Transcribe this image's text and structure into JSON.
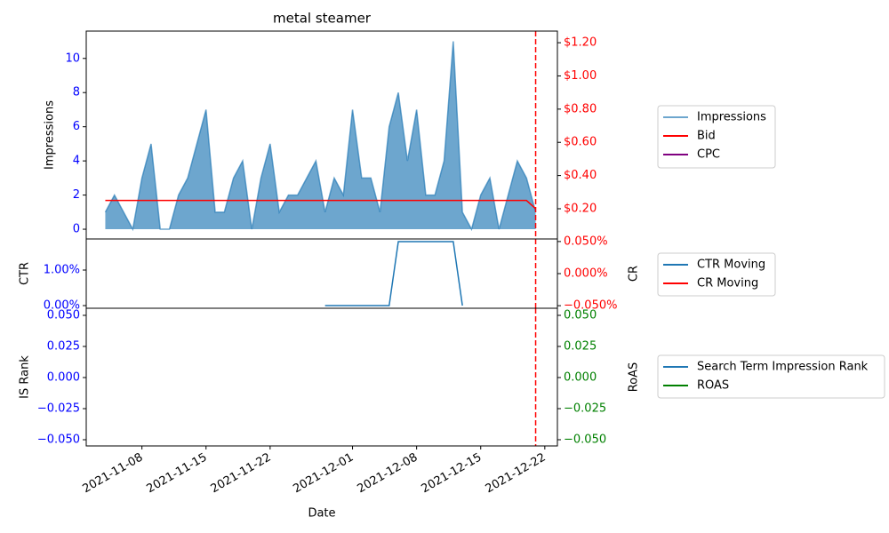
{
  "chart_data": {
    "type": "line",
    "title": "metal steamer",
    "x_label": "Date",
    "x": [
      "2021-11-04",
      "2021-11-05",
      "2021-11-06",
      "2021-11-07",
      "2021-11-08",
      "2021-11-09",
      "2021-11-10",
      "2021-11-11",
      "2021-11-12",
      "2021-11-13",
      "2021-11-14",
      "2021-11-15",
      "2021-11-16",
      "2021-11-17",
      "2021-11-18",
      "2021-11-19",
      "2021-11-20",
      "2021-11-21",
      "2021-11-22",
      "2021-11-23",
      "2021-11-24",
      "2021-11-25",
      "2021-11-26",
      "2021-11-27",
      "2021-11-28",
      "2021-11-29",
      "2021-11-30",
      "2021-12-01",
      "2021-12-02",
      "2021-12-03",
      "2021-12-04",
      "2021-12-05",
      "2021-12-06",
      "2021-12-07",
      "2021-12-08",
      "2021-12-09",
      "2021-12-10",
      "2021-12-11",
      "2021-12-12",
      "2021-12-13",
      "2021-12-14",
      "2021-12-15",
      "2021-12-16",
      "2021-12-17",
      "2021-12-18",
      "2021-12-19",
      "2021-12-20",
      "2021-12-21"
    ],
    "xlim": [
      "2021-11-01T22:00",
      "2021-12-23T09:00"
    ],
    "xticks": [
      "2021-11-08",
      "2021-11-15",
      "2021-11-22",
      "2021-12-01",
      "2021-12-08",
      "2021-12-15",
      "2021-12-22"
    ],
    "vline": "2021-12-21",
    "vline_color": "#ff0000",
    "panels": [
      {
        "left": {
          "label": "Impressions",
          "ylim": [
            -0.57,
            11.6
          ],
          "yticks": [
            0,
            2,
            4,
            6,
            8,
            10
          ],
          "tick_color": "#0000ff"
        },
        "right": {
          "ylim": [
            0.018,
            1.27
          ],
          "yticks": [
            {
              "value": 0.2,
              "label": "$0.20"
            },
            {
              "value": 0.4,
              "label": "$0.40"
            },
            {
              "value": 0.6,
              "label": "$0.60"
            },
            {
              "value": 0.8,
              "label": "$0.80"
            },
            {
              "value": 1.0,
              "label": "$1.00"
            },
            {
              "value": 1.2,
              "label": "$1.20"
            }
          ],
          "tick_color": "#ff0000"
        },
        "series": [
          {
            "name": "Impressions",
            "type": "area",
            "color": "#1f77b4",
            "axis": "y",
            "values": [
              1,
              2,
              1,
              0,
              3,
              5,
              0,
              0,
              2,
              3,
              5,
              7,
              1,
              1,
              3,
              4,
              0,
              3,
              5,
              1,
              2,
              2,
              3,
              4,
              1,
              3,
              2,
              7,
              3,
              3,
              1,
              6,
              8,
              4,
              7,
              2,
              2,
              4,
              11,
              1,
              0,
              2,
              3,
              0,
              2,
              4,
              3,
              1
            ]
          },
          {
            "name": "Bid",
            "type": "line",
            "color": "#ff0000",
            "axis": "y2",
            "values": [
              0.25,
              0.25,
              0.25,
              0.25,
              0.25,
              0.25,
              0.25,
              0.25,
              0.25,
              0.25,
              0.25,
              0.25,
              0.25,
              0.25,
              0.25,
              0.25,
              0.25,
              0.25,
              0.25,
              0.25,
              0.25,
              0.25,
              0.25,
              0.25,
              0.25,
              0.25,
              0.25,
              0.25,
              0.25,
              0.25,
              0.25,
              0.25,
              0.25,
              0.25,
              0.25,
              0.25,
              0.25,
              0.25,
              0.25,
              0.25,
              0.25,
              0.25,
              0.25,
              0.25,
              0.25,
              0.25,
              0.25,
              0.2
            ]
          },
          {
            "name": "CPC",
            "type": "line",
            "color": "#800080",
            "axis": "y2",
            "values": [
              null,
              null,
              null,
              null,
              null,
              null,
              null,
              null,
              null,
              null,
              null,
              null,
              null,
              null,
              null,
              null,
              null,
              null,
              null,
              null,
              null,
              null,
              null,
              null,
              null,
              null,
              null,
              null,
              null,
              null,
              null,
              null,
              null,
              null,
              null,
              null,
              null,
              null,
              null,
              null,
              null,
              null,
              null,
              null,
              null,
              null,
              null,
              null
            ]
          }
        ]
      },
      {
        "left": {
          "label": "CTR",
          "ylim": [
            -0.075,
            1.875
          ],
          "yticks": [
            {
              "value": 0,
              "label": "0.00%"
            },
            {
              "value": 1,
              "label": "1.00%"
            }
          ],
          "tick_color": "#0000ff"
        },
        "right": {
          "label": "CR",
          "ylim": [
            -0.054,
            0.054
          ],
          "yticks": [
            {
              "value": -0.05,
              "label": "−0.050%"
            },
            {
              "value": 0,
              "label": "0.000%"
            },
            {
              "value": 0.05,
              "label": "0.050%"
            }
          ],
          "tick_color": "#ff0000"
        },
        "series": [
          {
            "name": "CTR Moving",
            "type": "line",
            "color": "#1f77b4",
            "axis": "y",
            "values": [
              null,
              null,
              null,
              null,
              null,
              null,
              null,
              null,
              null,
              null,
              null,
              null,
              null,
              null,
              null,
              null,
              null,
              null,
              null,
              null,
              null,
              null,
              null,
              null,
              0,
              0,
              0,
              0,
              0,
              0,
              0,
              0,
              1.8,
              1.8,
              1.8,
              1.8,
              1.8,
              1.8,
              1.8,
              0,
              null,
              null,
              null,
              null,
              null,
              null,
              null,
              null
            ]
          },
          {
            "name": "CR Moving",
            "type": "line",
            "color": "#ff0000",
            "axis": "y2",
            "values": [
              null,
              null,
              null,
              null,
              null,
              null,
              null,
              null,
              null,
              null,
              null,
              null,
              null,
              null,
              null,
              null,
              null,
              null,
              null,
              null,
              null,
              null,
              null,
              null,
              null,
              null,
              null,
              null,
              null,
              null,
              null,
              null,
              null,
              null,
              null,
              null,
              null,
              null,
              null,
              null,
              null,
              null,
              null,
              null,
              null,
              null,
              null,
              null
            ]
          }
        ]
      },
      {
        "left": {
          "label": "IS Rank",
          "ylim": [
            -0.055,
            0.0557
          ],
          "yticks": [
            {
              "value": -0.05,
              "label": "−0.050"
            },
            {
              "value": -0.025,
              "label": "−0.025"
            },
            {
              "value": 0,
              "label": "0.000"
            },
            {
              "value": 0.025,
              "label": "0.025"
            },
            {
              "value": 0.05,
              "label": "0.050"
            }
          ],
          "tick_color": "#0000ff"
        },
        "right": {
          "label": "RoAS",
          "ylim": [
            -0.055,
            0.0557
          ],
          "yticks": [
            {
              "value": -0.05,
              "label": "−0.050"
            },
            {
              "value": -0.025,
              "label": "−0.025"
            },
            {
              "value": 0,
              "label": "0.000"
            },
            {
              "value": 0.025,
              "label": "0.025"
            },
            {
              "value": 0.05,
              "label": "0.050"
            }
          ],
          "tick_color": "#008000"
        },
        "series": [
          {
            "name": "Search Term Impression Rank",
            "type": "line",
            "color": "#1f77b4",
            "axis": "y",
            "values": [
              null,
              null,
              null,
              null,
              null,
              null,
              null,
              null,
              null,
              null,
              null,
              null,
              null,
              null,
              null,
              null,
              null,
              null,
              null,
              null,
              null,
              null,
              null,
              null,
              null,
              null,
              null,
              null,
              null,
              null,
              null,
              null,
              null,
              null,
              null,
              null,
              null,
              null,
              null,
              null,
              null,
              null,
              null,
              null,
              null,
              null,
              null,
              null
            ]
          },
          {
            "name": "ROAS",
            "type": "line",
            "color": "#008000",
            "axis": "y2",
            "values": [
              null,
              null,
              null,
              null,
              null,
              null,
              null,
              null,
              null,
              null,
              null,
              null,
              null,
              null,
              null,
              null,
              null,
              null,
              null,
              null,
              null,
              null,
              null,
              null,
              null,
              null,
              null,
              null,
              null,
              null,
              null,
              null,
              null,
              null,
              null,
              null,
              null,
              null,
              null,
              null,
              null,
              null,
              null,
              null,
              null,
              null,
              null,
              null
            ]
          }
        ]
      }
    ]
  }
}
